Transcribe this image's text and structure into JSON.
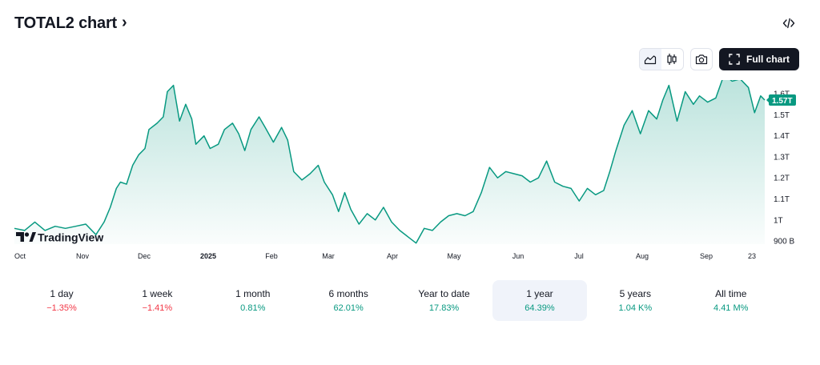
{
  "header": {
    "title": "TOTAL2 chart",
    "title_chevron": "›",
    "embed_icon": "code-embed-icon"
  },
  "toolbar": {
    "area_icon": "area-chart-icon",
    "candle_icon": "candlestick-icon",
    "camera_icon": "camera-icon",
    "full_icon": "fullscreen-icon",
    "full_chart_label": "Full chart"
  },
  "brand": {
    "logo_text": "TradingView"
  },
  "periods": [
    {
      "label": "1 day",
      "value": "−1.35%",
      "direction": "neg",
      "selected": false
    },
    {
      "label": "1 week",
      "value": "−1.41%",
      "direction": "neg",
      "selected": false
    },
    {
      "label": "1 month",
      "value": "0.81%",
      "direction": "pos",
      "selected": false
    },
    {
      "label": "6 months",
      "value": "62.01%",
      "direction": "pos",
      "selected": false
    },
    {
      "label": "Year to date",
      "value": "17.83%",
      "direction": "pos",
      "selected": false
    },
    {
      "label": "1 year",
      "value": "64.39%",
      "direction": "pos",
      "selected": true
    },
    {
      "label": "5 years",
      "value": "1.04 K%",
      "direction": "pos",
      "selected": false
    },
    {
      "label": "All time",
      "value": "4.41 M%",
      "direction": "pos",
      "selected": false
    }
  ],
  "chart_data": {
    "type": "area",
    "title": "TOTAL2 chart",
    "x_ticks": [
      "Oct",
      "Nov",
      "Dec",
      "2025",
      "Feb",
      "Mar",
      "Apr",
      "May",
      "Jun",
      "Jul",
      "Aug",
      "Sep",
      "23"
    ],
    "x_tick_bold": [
      "2025"
    ],
    "y_ticks": [
      "900 B",
      "1T",
      "1.1T",
      "1.2T",
      "1.3T",
      "1.4T",
      "1.5T",
      "1.6T"
    ],
    "y_tick_values": [
      0.9,
      1.0,
      1.1,
      1.2,
      1.3,
      1.4,
      1.5,
      1.6
    ],
    "y_unit": "T",
    "ylim": [
      0.885,
      1.65
    ],
    "last_value_label": "1.57T",
    "last_value": 1.57,
    "line_color": "#089981",
    "fill_color": "#089981",
    "series": [
      {
        "x": [
          "2024-09-22",
          "2024-09-27",
          "2024-10-02",
          "2024-10-07",
          "2024-10-12",
          "2024-10-17",
          "2024-10-22",
          "2024-10-27",
          "2024-11-01",
          "2024-11-05",
          "2024-11-08",
          "2024-11-11",
          "2024-11-13",
          "2024-11-16",
          "2024-11-19",
          "2024-11-22",
          "2024-11-25",
          "2024-11-27",
          "2024-12-01",
          "2024-12-04",
          "2024-12-06",
          "2024-12-09",
          "2024-12-12",
          "2024-12-15",
          "2024-12-18",
          "2024-12-20",
          "2024-12-24",
          "2024-12-27",
          "2024-12-31",
          "2025-01-03",
          "2025-01-07",
          "2025-01-10",
          "2025-01-13",
          "2025-01-16",
          "2025-01-20",
          "2025-01-23",
          "2025-01-27",
          "2025-01-31",
          "2025-02-03",
          "2025-02-06",
          "2025-02-10",
          "2025-02-14",
          "2025-02-18",
          "2025-02-21",
          "2025-02-25",
          "2025-02-28",
          "2025-03-03",
          "2025-03-06",
          "2025-03-10",
          "2025-03-14",
          "2025-03-18",
          "2025-03-22",
          "2025-03-26",
          "2025-03-30",
          "2025-04-03",
          "2025-04-07",
          "2025-04-11",
          "2025-04-15",
          "2025-04-19",
          "2025-04-23",
          "2025-04-27",
          "2025-05-01",
          "2025-05-05",
          "2025-05-09",
          "2025-05-13",
          "2025-05-17",
          "2025-05-21",
          "2025-05-25",
          "2025-05-29",
          "2025-06-02",
          "2025-06-06",
          "2025-06-10",
          "2025-06-14",
          "2025-06-18",
          "2025-06-22",
          "2025-06-26",
          "2025-06-30",
          "2025-07-04",
          "2025-07-08",
          "2025-07-11",
          "2025-07-14",
          "2025-07-18",
          "2025-07-22",
          "2025-07-26",
          "2025-07-30",
          "2025-08-03",
          "2025-08-06",
          "2025-08-09",
          "2025-08-13",
          "2025-08-17",
          "2025-08-21",
          "2025-08-24",
          "2025-08-28",
          "2025-09-01",
          "2025-09-05",
          "2025-09-09",
          "2025-09-13",
          "2025-09-17",
          "2025-09-20",
          "2025-09-23",
          "2025-09-25"
        ],
        "y": [
          0.96,
          0.95,
          0.99,
          0.95,
          0.97,
          0.96,
          0.97,
          0.98,
          0.93,
          0.99,
          1.06,
          1.15,
          1.18,
          1.17,
          1.26,
          1.31,
          1.34,
          1.43,
          1.46,
          1.49,
          1.61,
          1.64,
          1.47,
          1.55,
          1.48,
          1.36,
          1.4,
          1.34,
          1.36,
          1.43,
          1.46,
          1.41,
          1.33,
          1.43,
          1.49,
          1.44,
          1.37,
          1.44,
          1.38,
          1.23,
          1.19,
          1.22,
          1.26,
          1.18,
          1.12,
          1.04,
          1.13,
          1.05,
          0.98,
          1.03,
          1.0,
          1.06,
          0.99,
          0.95,
          0.92,
          0.89,
          0.96,
          0.95,
          0.99,
          1.02,
          1.03,
          1.02,
          1.04,
          1.13,
          1.25,
          1.2,
          1.23,
          1.22,
          1.21,
          1.18,
          1.2,
          1.28,
          1.18,
          1.16,
          1.15,
          1.09,
          1.15,
          1.12,
          1.14,
          1.23,
          1.33,
          1.45,
          1.52,
          1.41,
          1.52,
          1.48,
          1.57,
          1.64,
          1.47,
          1.61,
          1.55,
          1.59,
          1.56,
          1.58,
          1.69,
          1.66,
          1.67,
          1.63,
          1.51,
          1.59,
          1.57
        ]
      }
    ],
    "grid": false,
    "legend": "none"
  }
}
